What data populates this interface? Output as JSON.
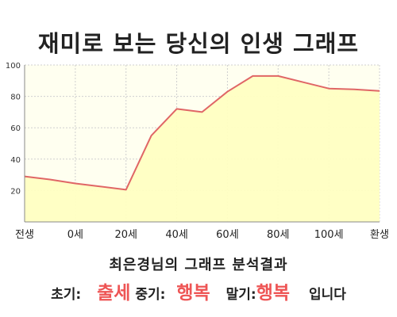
{
  "title": "재미로 보는 당신의 인생 그래프",
  "colors": {
    "line": "#e06666",
    "fill": "#ffffc2",
    "grid": "#cfcfcf",
    "accent": "#ee5555"
  },
  "chart_data": {
    "type": "area",
    "title": "재미로 보는 당신의 인생 그래프",
    "xlabel": "",
    "ylabel": "",
    "ylim": [
      0,
      100
    ],
    "yticks": [
      20,
      40,
      60,
      80,
      100
    ],
    "x_tick_labels": [
      "전생",
      "0세",
      "20세",
      "40세",
      "60세",
      "80세",
      "100세",
      "환생"
    ],
    "grid": true,
    "legend": false,
    "series": [
      {
        "values": [
          29,
          27,
          24.5,
          22.5,
          20.5,
          55,
          72,
          70,
          83,
          93,
          93,
          89,
          85,
          84.5,
          83.5
        ]
      }
    ]
  },
  "summary": {
    "heading": "최은경님의 그래프 분석결과",
    "early_label": "초기:",
    "early_value": "출세",
    "middle_label": "중기:",
    "middle_value": "행복",
    "late_label": "말기:",
    "late_value": "행복",
    "ending": "입니다"
  }
}
